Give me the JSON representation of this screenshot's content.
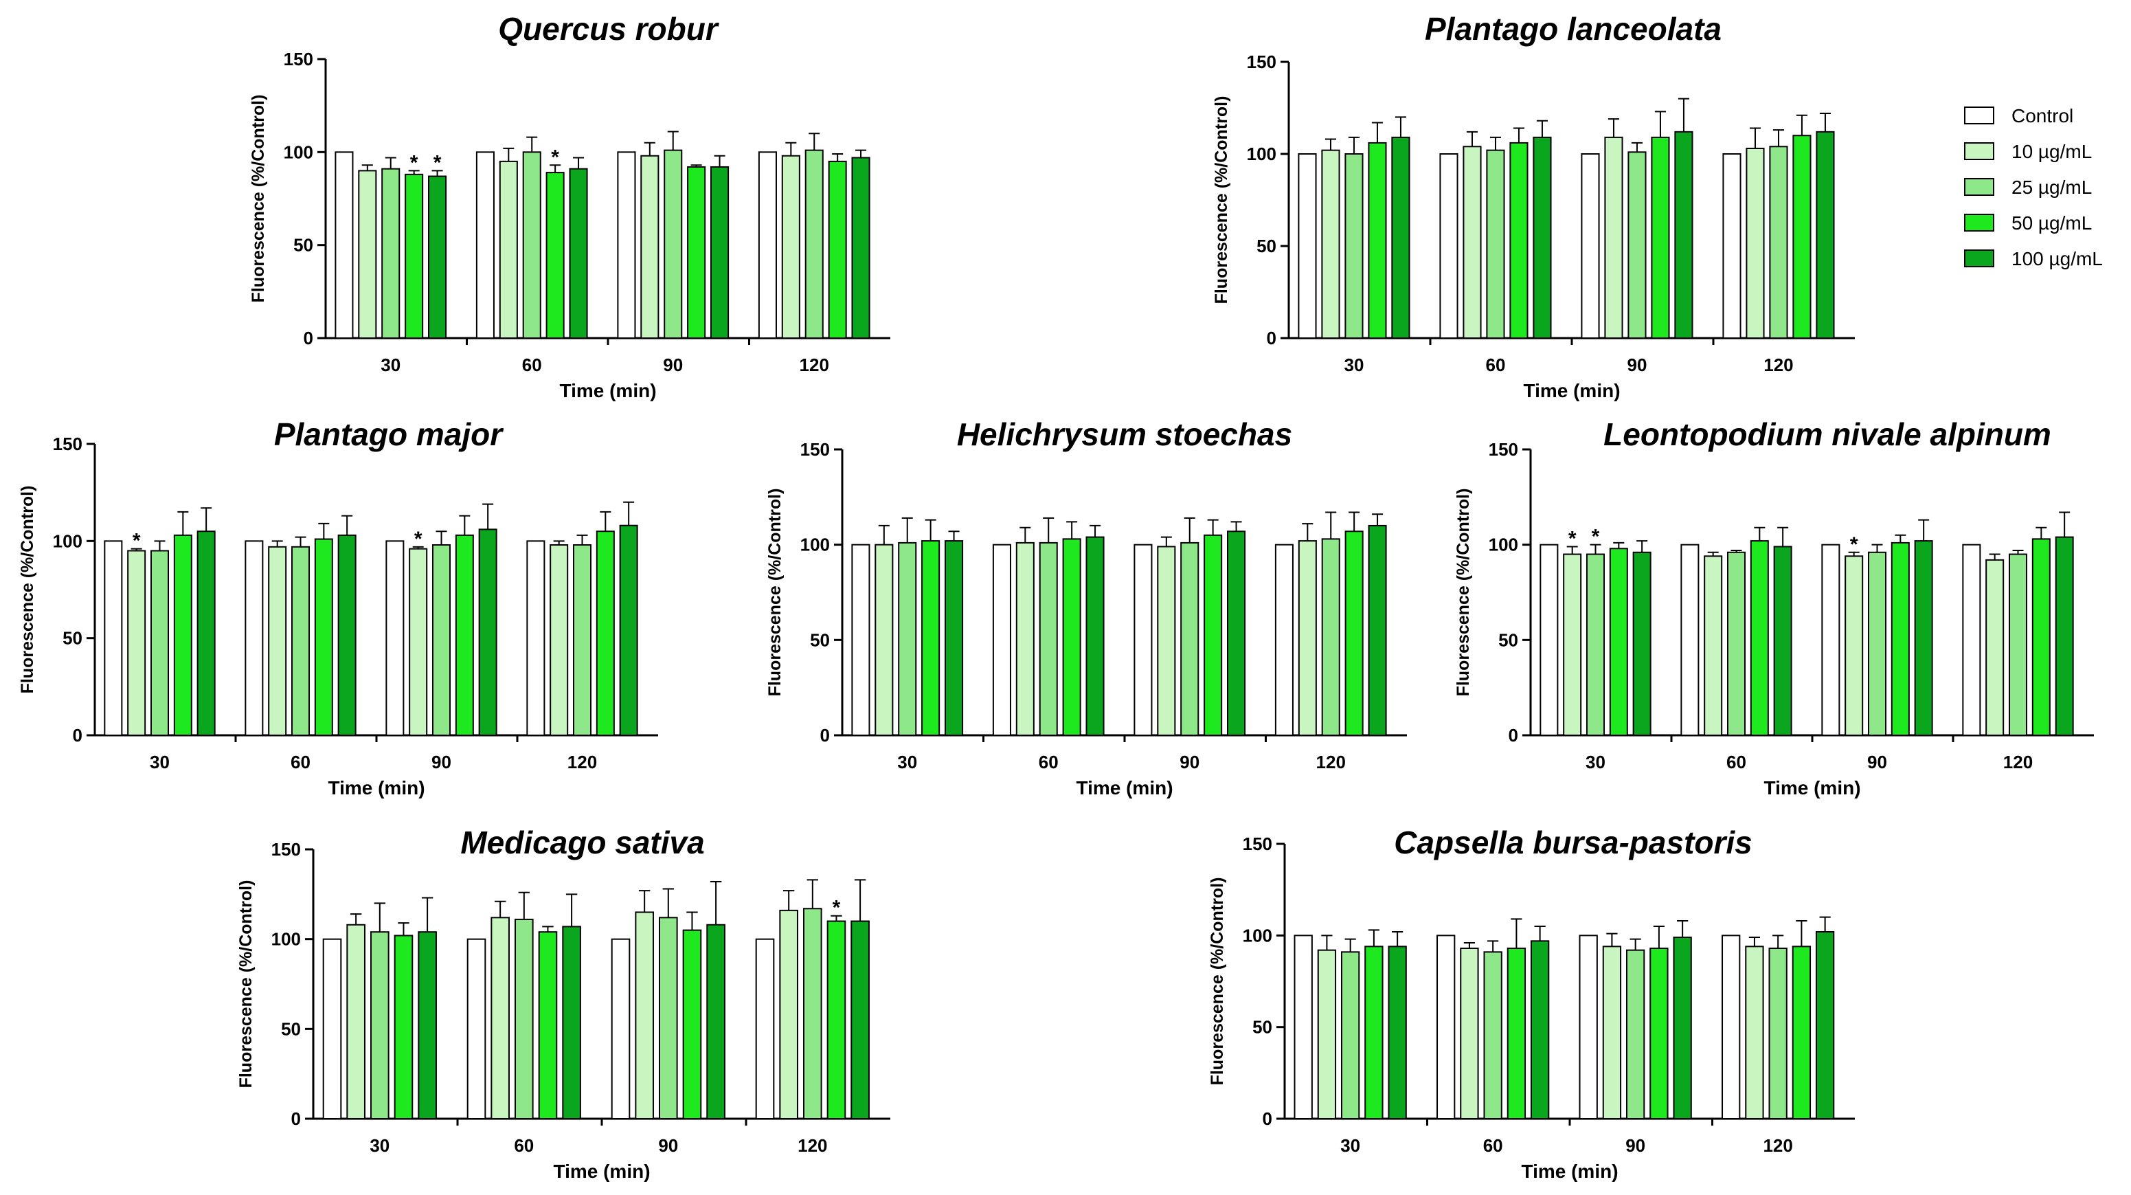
{
  "legend": {
    "entries": [
      {
        "label": "Control",
        "color": "#ffffff"
      },
      {
        "label": "10 µg/mL",
        "color": "#c8f5c0"
      },
      {
        "label": "25 µg/mL",
        "color": "#8ee88a"
      },
      {
        "label": "50 µg/mL",
        "color": "#1ee81e"
      },
      {
        "label": "100 µg/mL",
        "color": "#0aa61e"
      }
    ]
  },
  "chart_data": [
    {
      "type": "bar",
      "title": "Quercus robur",
      "xlabel": "Time (min)",
      "ylabel": "Fluorescence (%/Control)",
      "categories": [
        "30",
        "60",
        "90",
        "120"
      ],
      "ylim": [
        0,
        150
      ],
      "yticks": [
        0,
        50,
        100,
        150
      ],
      "series": [
        {
          "name": "Control",
          "values": [
            100,
            100,
            100,
            100
          ],
          "errors": [
            0,
            0,
            0,
            0
          ]
        },
        {
          "name": "10 µg/mL",
          "values": [
            90,
            95,
            98,
            98
          ],
          "errors": [
            3,
            7,
            7,
            7
          ]
        },
        {
          "name": "25 µg/mL",
          "values": [
            91,
            100,
            101,
            101
          ],
          "errors": [
            6,
            8,
            10,
            9
          ]
        },
        {
          "name": "50 µg/mL",
          "values": [
            88,
            89,
            92,
            95
          ],
          "errors": [
            2,
            4,
            1,
            4
          ]
        },
        {
          "name": "100 µg/mL",
          "values": [
            87,
            91,
            92,
            97
          ],
          "errors": [
            3,
            6,
            6,
            4
          ]
        }
      ],
      "significant": [
        {
          "series": 3,
          "category": 0
        },
        {
          "series": 4,
          "category": 0
        },
        {
          "series": 3,
          "category": 1
        }
      ]
    },
    {
      "type": "bar",
      "title": "Plantago lanceolata",
      "xlabel": "Time (min)",
      "ylabel": "Fluorescence (%/Control)",
      "categories": [
        "30",
        "60",
        "90",
        "120"
      ],
      "ylim": [
        0,
        150
      ],
      "yticks": [
        0,
        50,
        100,
        150
      ],
      "series": [
        {
          "name": "Control",
          "values": [
            100,
            100,
            100,
            100
          ],
          "errors": [
            0,
            0,
            0,
            0
          ]
        },
        {
          "name": "10 µg/mL",
          "values": [
            102,
            104,
            109,
            103
          ],
          "errors": [
            6,
            8,
            10,
            11
          ]
        },
        {
          "name": "25 µg/mL",
          "values": [
            100,
            102,
            101,
            104
          ],
          "errors": [
            9,
            7,
            5,
            9
          ]
        },
        {
          "name": "50 µg/mL",
          "values": [
            106,
            106,
            109,
            110
          ],
          "errors": [
            11,
            8,
            14,
            11
          ]
        },
        {
          "name": "100 µg/mL",
          "values": [
            109,
            109,
            112,
            112
          ],
          "errors": [
            11,
            9,
            18,
            10
          ]
        }
      ],
      "significant": []
    },
    {
      "type": "bar",
      "title": "Plantago major",
      "xlabel": "Time (min)",
      "ylabel": "Fluorescence (%/Control)",
      "categories": [
        "30",
        "60",
        "90",
        "120"
      ],
      "ylim": [
        0,
        150
      ],
      "yticks": [
        0,
        50,
        100,
        150
      ],
      "series": [
        {
          "name": "Control",
          "values": [
            100,
            100,
            100,
            100
          ],
          "errors": [
            0,
            0,
            0,
            0
          ]
        },
        {
          "name": "10 µg/mL",
          "values": [
            95,
            97,
            96,
            98
          ],
          "errors": [
            1,
            3,
            1,
            2
          ]
        },
        {
          "name": "25 µg/mL",
          "values": [
            95,
            97,
            98,
            98
          ],
          "errors": [
            5,
            5,
            7,
            5
          ]
        },
        {
          "name": "50 µg/mL",
          "values": [
            103,
            101,
            103,
            105
          ],
          "errors": [
            12,
            8,
            10,
            10
          ]
        },
        {
          "name": "100 µg/mL",
          "values": [
            105,
            103,
            106,
            108
          ],
          "errors": [
            12,
            10,
            13,
            12
          ]
        }
      ],
      "significant": [
        {
          "series": 1,
          "category": 0
        },
        {
          "series": 1,
          "category": 2
        }
      ]
    },
    {
      "type": "bar",
      "title": "Helichrysum stoechas",
      "xlabel": "Time (min)",
      "ylabel": "Fluorescence (%/Control)",
      "categories": [
        "30",
        "60",
        "90",
        "120"
      ],
      "ylim": [
        0,
        150
      ],
      "yticks": [
        0,
        50,
        100,
        150
      ],
      "series": [
        {
          "name": "Control",
          "values": [
            100,
            100,
            100,
            100
          ],
          "errors": [
            0,
            0,
            0,
            0
          ]
        },
        {
          "name": "10 µg/mL",
          "values": [
            100,
            101,
            99,
            102
          ],
          "errors": [
            10,
            8,
            5,
            9
          ]
        },
        {
          "name": "25 µg/mL",
          "values": [
            101,
            101,
            101,
            103
          ],
          "errors": [
            13,
            13,
            13,
            14
          ]
        },
        {
          "name": "50 µg/mL",
          "values": [
            102,
            103,
            105,
            107
          ],
          "errors": [
            11,
            9,
            8,
            10
          ]
        },
        {
          "name": "100 µg/mL",
          "values": [
            102,
            104,
            107,
            110
          ],
          "errors": [
            5,
            6,
            5,
            6
          ]
        }
      ],
      "significant": []
    },
    {
      "type": "bar",
      "title": "Leontopodium nivale alpinum",
      "xlabel": "Time (min)",
      "ylabel": "Fluorescence (%/Control)",
      "categories": [
        "30",
        "60",
        "90",
        "120"
      ],
      "ylim": [
        0,
        150
      ],
      "yticks": [
        0,
        50,
        100,
        150
      ],
      "series": [
        {
          "name": "Control",
          "values": [
            100,
            100,
            100,
            100
          ],
          "errors": [
            0,
            0,
            0,
            0
          ]
        },
        {
          "name": "10 µg/mL",
          "values": [
            95,
            94,
            94,
            92
          ],
          "errors": [
            4,
            2,
            2,
            3
          ]
        },
        {
          "name": "25 µg/mL",
          "values": [
            95,
            96,
            96,
            95
          ],
          "errors": [
            5,
            1,
            4,
            2
          ]
        },
        {
          "name": "50 µg/mL",
          "values": [
            98,
            102,
            101,
            103
          ],
          "errors": [
            3,
            7,
            4,
            6
          ]
        },
        {
          "name": "100 µg/mL",
          "values": [
            96,
            99,
            102,
            104
          ],
          "errors": [
            6,
            10,
            11,
            13
          ]
        }
      ],
      "significant": [
        {
          "series": 1,
          "category": 0
        },
        {
          "series": 2,
          "category": 0
        },
        {
          "series": 1,
          "category": 2
        }
      ]
    },
    {
      "type": "bar",
      "title": "Medicago sativa",
      "xlabel": "Time (min)",
      "ylabel": "Fluorescence (%/Control)",
      "categories": [
        "30",
        "60",
        "90",
        "120"
      ],
      "ylim": [
        0,
        150
      ],
      "yticks": [
        0,
        50,
        100,
        150
      ],
      "series": [
        {
          "name": "Control",
          "values": [
            100,
            100,
            100,
            100
          ],
          "errors": [
            0,
            0,
            0,
            0
          ]
        },
        {
          "name": "10 µg/mL",
          "values": [
            108,
            112,
            115,
            116
          ],
          "errors": [
            6,
            9,
            12,
            11
          ]
        },
        {
          "name": "25 µg/mL",
          "values": [
            104,
            111,
            112,
            117
          ],
          "errors": [
            16,
            15,
            16,
            16
          ]
        },
        {
          "name": "50 µg/mL",
          "values": [
            102,
            104,
            105,
            110
          ],
          "errors": [
            7,
            3,
            10,
            3
          ]
        },
        {
          "name": "100 µg/mL",
          "values": [
            104,
            107,
            108,
            110
          ],
          "errors": [
            19,
            18,
            24,
            23
          ]
        }
      ],
      "significant": [
        {
          "series": 3,
          "category": 3
        }
      ]
    },
    {
      "type": "bar",
      "title": "Capsella bursa-pastoris",
      "xlabel": "Time (min)",
      "ylabel": "Fluorescence (%/Control)",
      "categories": [
        "30",
        "60",
        "90",
        "120"
      ],
      "ylim": [
        0,
        150
      ],
      "yticks": [
        0,
        50,
        100,
        150
      ],
      "series": [
        {
          "name": "Control",
          "values": [
            100,
            100,
            100,
            100
          ],
          "errors": [
            0,
            0,
            0,
            0
          ]
        },
        {
          "name": "10 µg/mL",
          "values": [
            92,
            93,
            94,
            94
          ],
          "errors": [
            8,
            3,
            7,
            5
          ]
        },
        {
          "name": "25 µg/mL",
          "values": [
            91,
            91,
            92,
            93
          ],
          "errors": [
            7,
            6,
            6,
            7
          ]
        },
        {
          "name": "50 µg/mL",
          "values": [
            94,
            93,
            93,
            94
          ],
          "errors": [
            9,
            16,
            12,
            14
          ]
        },
        {
          "name": "100 µg/mL",
          "values": [
            94,
            97,
            99,
            102
          ],
          "errors": [
            8,
            8,
            9,
            8
          ]
        }
      ],
      "significant": []
    }
  ]
}
